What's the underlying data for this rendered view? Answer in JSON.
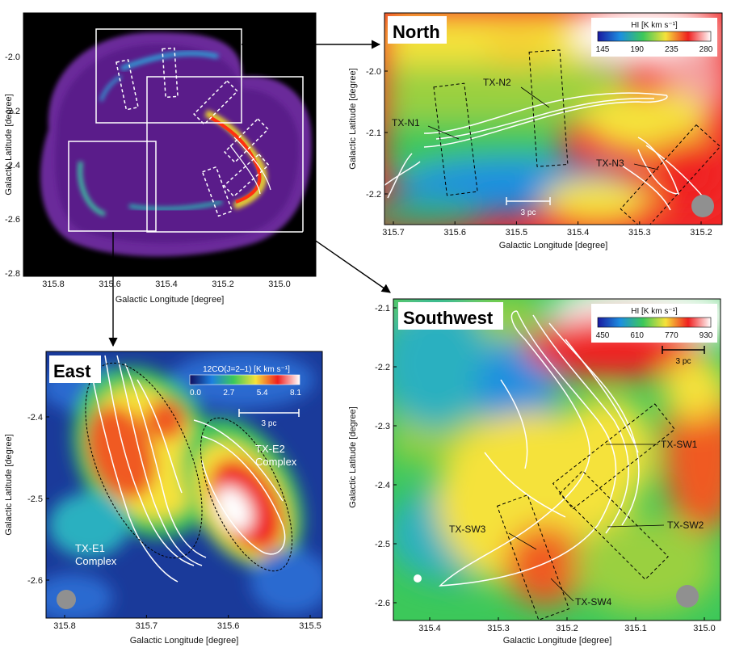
{
  "chart_data": [
    {
      "type": "heatmap",
      "panel": "overview",
      "x_ticks": [
        "315.8",
        "315.6",
        "315.4",
        "315.2",
        "315.0"
      ],
      "y_ticks": [
        "-2.0",
        "-2.2",
        "-2.4",
        "-2.6",
        "-2.8"
      ],
      "xlabel": "Galactic Longitude [degree]",
      "ylabel": "Galactic Latitude [degree]"
    },
    {
      "type": "heatmap",
      "panel": "north",
      "title": "North",
      "colorbar_label": "HI [K km s⁻¹]",
      "colorbar_ticks": [
        "145",
        "190",
        "235",
        "280"
      ],
      "x_ticks": [
        "315.7",
        "315.6",
        "315.5",
        "315.4",
        "315.3",
        "315.2"
      ],
      "y_ticks": [
        "-2.0",
        "-2.1",
        "-2.2"
      ],
      "xlabel": "Galactic Longitude [degree]",
      "ylabel": "Galactic Latitude [degree]",
      "scale_bar": "3 pc",
      "labels": [
        "TX-N1",
        "TX-N2",
        "TX-N3"
      ]
    },
    {
      "type": "heatmap",
      "panel": "east",
      "title": "East",
      "colorbar_label": "12CO(J=2–1) [K km s⁻¹]",
      "colorbar_ticks": [
        "0.0",
        "2.7",
        "5.4",
        "8.1"
      ],
      "x_ticks": [
        "315.8",
        "315.7",
        "315.6",
        "315.5"
      ],
      "y_ticks": [
        "-2.4",
        "-2.5",
        "-2.6"
      ],
      "xlabel": "Galactic Longitude [degree]",
      "ylabel": "Galactic Latitude [degree]",
      "scale_bar": "3 pc",
      "labels": [
        "TX-E1",
        "Complex",
        "TX-E2",
        "Complex"
      ]
    },
    {
      "type": "heatmap",
      "panel": "southwest",
      "title": "Southwest",
      "colorbar_label": "HI [K km s⁻¹]",
      "colorbar_ticks": [
        "450",
        "610",
        "770",
        "930"
      ],
      "x_ticks": [
        "315.4",
        "315.3",
        "315.2",
        "315.1",
        "315.0"
      ],
      "y_ticks": [
        "-2.1",
        "-2.2",
        "-2.3",
        "-2.4",
        "-2.5",
        "-2.6"
      ],
      "xlabel": "Galactic Longitude [degree]",
      "ylabel": "Galactic Latitude [degree]",
      "scale_bar": "3 pc",
      "labels": [
        "TX-SW1",
        "TX-SW2",
        "TX-SW3",
        "TX-SW4"
      ]
    }
  ]
}
